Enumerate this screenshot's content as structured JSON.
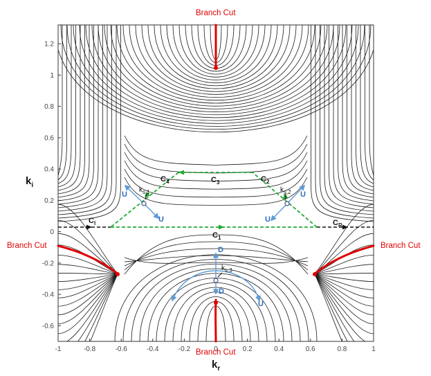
{
  "figure": {
    "x_axis_label": "k",
    "x_axis_sub": "r",
    "y_axis_label": "k",
    "y_axis_sub": "i",
    "x_ticks": [
      "-1",
      "-0.8",
      "-0.6",
      "-0.4",
      "-0.2",
      "0",
      "0.2",
      "0.4",
      "0.6",
      "0.8",
      "1"
    ],
    "y_ticks": [
      "1.2",
      "1",
      "0.8",
      "0.6",
      "0.4",
      "0.2",
      "0",
      "-0.2",
      "-0.4",
      "-0.6"
    ],
    "x_range": [
      -1,
      1
    ],
    "y_range": [
      -0.7,
      1.32
    ],
    "branch_cut_label": "Branch Cut",
    "contours": {
      "c1": {
        "main": "C",
        "sub": "1"
      },
      "c2": {
        "main": "C",
        "sub": "2"
      },
      "c3": {
        "main": "C",
        "sub": "3"
      },
      "c4": {
        "main": "C",
        "sub": "4"
      },
      "cl": {
        "main": "C",
        "sub": "l"
      },
      "cr": {
        "main": "C",
        "sub": "R"
      }
    },
    "saddles": [
      {
        "main": "k",
        "sub": "s,1"
      },
      {
        "main": "k",
        "sub": "s,2"
      },
      {
        "main": "k",
        "sub": "s,3"
      }
    ],
    "direction_labels": {
      "up": "U",
      "down": "D"
    },
    "colors": {
      "branch_cut": "#e00000",
      "integration_path": "#22aa33",
      "real_axis_path": "#111111",
      "direction_arrows": "#5b9bd5",
      "contour_lines": "#1a1a1a"
    }
  }
}
